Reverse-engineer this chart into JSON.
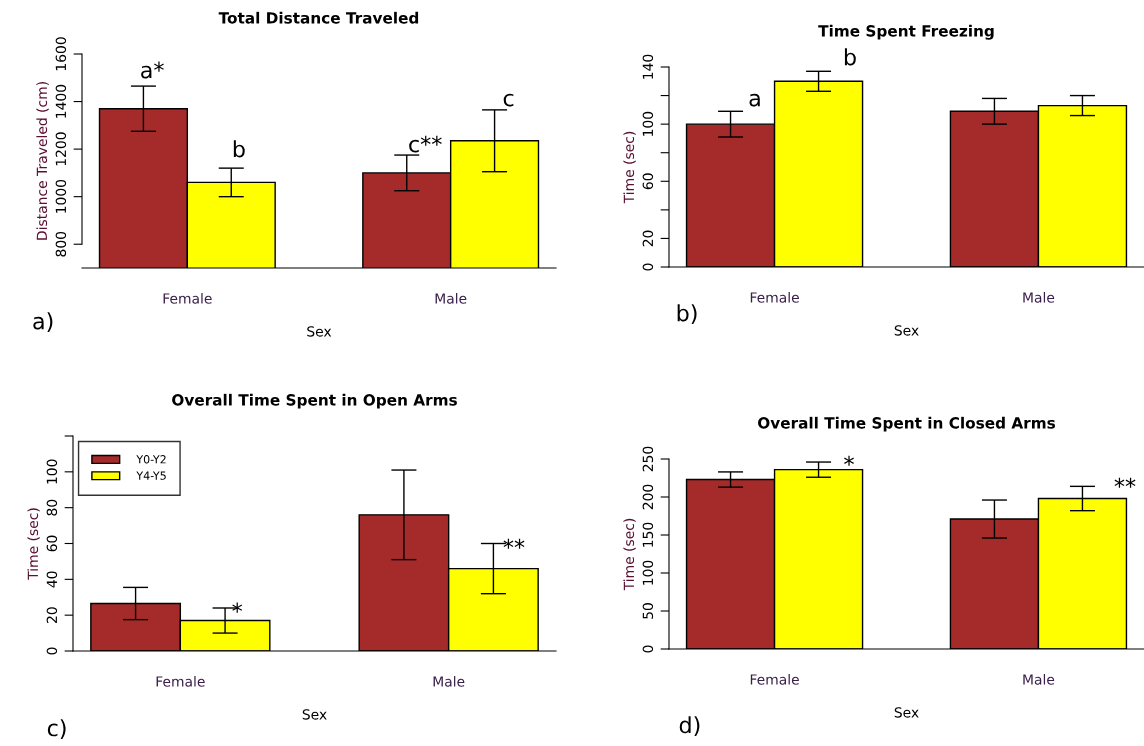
{
  "chart_data": [
    {
      "type": "bar",
      "title": "Total Distance Traveled",
      "xlabel": "Sex",
      "ylabel": "Distance Traveled (cm)",
      "categories": [
        "Female",
        "Male"
      ],
      "series": [
        {
          "color": "#a52a2a",
          "values": [
            1370,
            1100
          ],
          "errors": [
            95,
            75
          ]
        },
        {
          "color": "#ffff00",
          "values": [
            1060,
            1235
          ],
          "errors": [
            60,
            130
          ]
        }
      ],
      "ylim": [
        700,
        1600
      ],
      "yticks": [
        800,
        1000,
        1200,
        1400,
        1600
      ],
      "grid": false,
      "legend": false,
      "annotations": [
        "a*",
        "b",
        "c**",
        "c",
        "a)"
      ]
    },
    {
      "type": "bar",
      "title": "Time Spent Freezing",
      "xlabel": "Sex",
      "ylabel": "Time (sec)",
      "categories": [
        "Female",
        "Male"
      ],
      "series": [
        {
          "color": "#a52a2a",
          "values": [
            100,
            109
          ],
          "errors": [
            9,
            9
          ]
        },
        {
          "color": "#ffff00",
          "values": [
            130,
            113
          ],
          "errors": [
            7,
            7
          ]
        }
      ],
      "ylim": [
        0,
        140
      ],
      "yticks": [
        0,
        20,
        {
          "value": 40,
          "label": null
        },
        60,
        {
          "value": 80,
          "label": null
        },
        100,
        {
          "value": 120,
          "label": null
        },
        140
      ],
      "grid": false,
      "legend": false,
      "annotations": [
        "a",
        "b",
        "b)"
      ]
    },
    {
      "type": "bar",
      "title": "Overall Time Spent in Open Arms",
      "xlabel": "Sex",
      "ylabel": "Time (sec)",
      "categories": [
        "Female",
        "Male"
      ],
      "series": [
        {
          "name": "Y0-Y2",
          "color": "#a52a2a",
          "values": [
            26.5,
            76
          ],
          "errors": [
            9,
            25
          ]
        },
        {
          "name": "Y4-Y5",
          "color": "#ffff00",
          "values": [
            17,
            46
          ],
          "errors": [
            7,
            14
          ]
        }
      ],
      "ylim": [
        0,
        120
      ],
      "yticks": [
        0,
        20,
        40,
        60,
        80,
        100,
        {
          "value": 120,
          "label": null
        }
      ],
      "grid": false,
      "legend": "top left",
      "annotations": [
        "*",
        "**",
        "c)"
      ]
    },
    {
      "type": "bar",
      "title": "Overall Time Spent in Closed Arms",
      "xlabel": "Sex",
      "ylabel": "Time (sec)",
      "categories": [
        "Female",
        "Male"
      ],
      "series": [
        {
          "color": "#a52a2a",
          "values": [
            223,
            171
          ],
          "errors": [
            10,
            25
          ]
        },
        {
          "color": "#ffff00",
          "values": [
            236,
            198
          ],
          "errors": [
            10,
            16
          ]
        }
      ],
      "ylim": [
        0,
        250
      ],
      "yticks": [
        0,
        50,
        100,
        150,
        200,
        250
      ],
      "grid": false,
      "legend": false,
      "annotations": [
        "*",
        "**",
        "d)"
      ]
    }
  ]
}
